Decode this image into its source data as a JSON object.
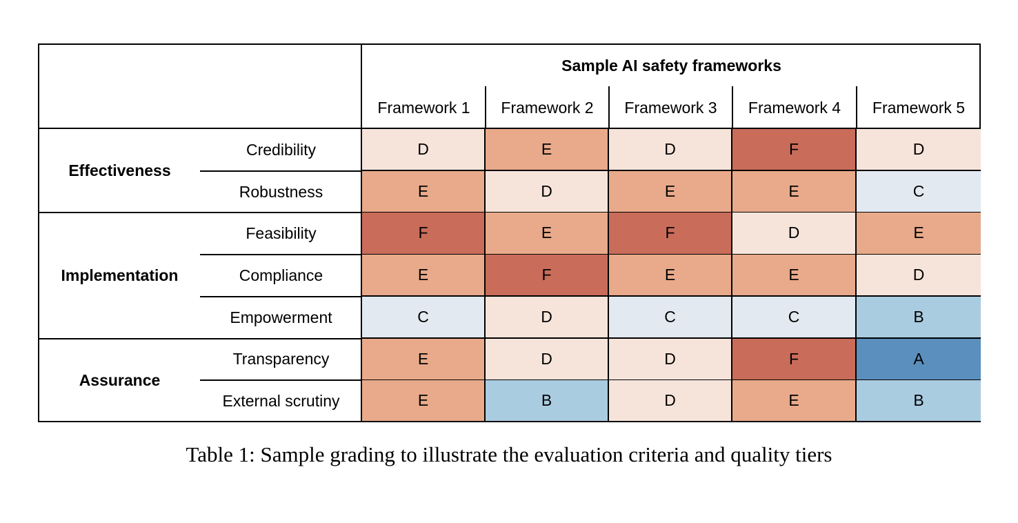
{
  "table": {
    "header_title": "Sample AI safety frameworks",
    "frameworks": [
      "Framework 1",
      "Framework 2",
      "Framework 3",
      "Framework 4",
      "Framework 5"
    ],
    "groups": [
      {
        "label": "Effectiveness",
        "rows": [
          {
            "criterion": "Credibility",
            "grades": [
              "D",
              "E",
              "D",
              "F",
              "D"
            ]
          },
          {
            "criterion": "Robustness",
            "grades": [
              "E",
              "D",
              "E",
              "E",
              "C"
            ]
          }
        ]
      },
      {
        "label": "Implementation",
        "rows": [
          {
            "criterion": "Feasibility",
            "grades": [
              "F",
              "E",
              "F",
              "D",
              "E"
            ]
          },
          {
            "criterion": "Compliance",
            "grades": [
              "E",
              "F",
              "E",
              "E",
              "D"
            ]
          },
          {
            "criterion": "Empowerment",
            "grades": [
              "C",
              "D",
              "C",
              "C",
              "B"
            ]
          }
        ]
      },
      {
        "label": "Assurance",
        "rows": [
          {
            "criterion": "Transparency",
            "grades": [
              "E",
              "D",
              "D",
              "F",
              "A"
            ]
          },
          {
            "criterion": "External scrutiny",
            "grades": [
              "E",
              "B",
              "D",
              "E",
              "B"
            ]
          }
        ]
      }
    ]
  },
  "grade_colors": {
    "A": "#5b8fbd",
    "B": "#aacce1",
    "C": "#e2e9f0",
    "D": "#f6e4da",
    "E": "#e8aa8a",
    "F": "#c96c5a"
  },
  "caption": "Table 1: Sample grading to illustrate the evaluation criteria and quality tiers"
}
